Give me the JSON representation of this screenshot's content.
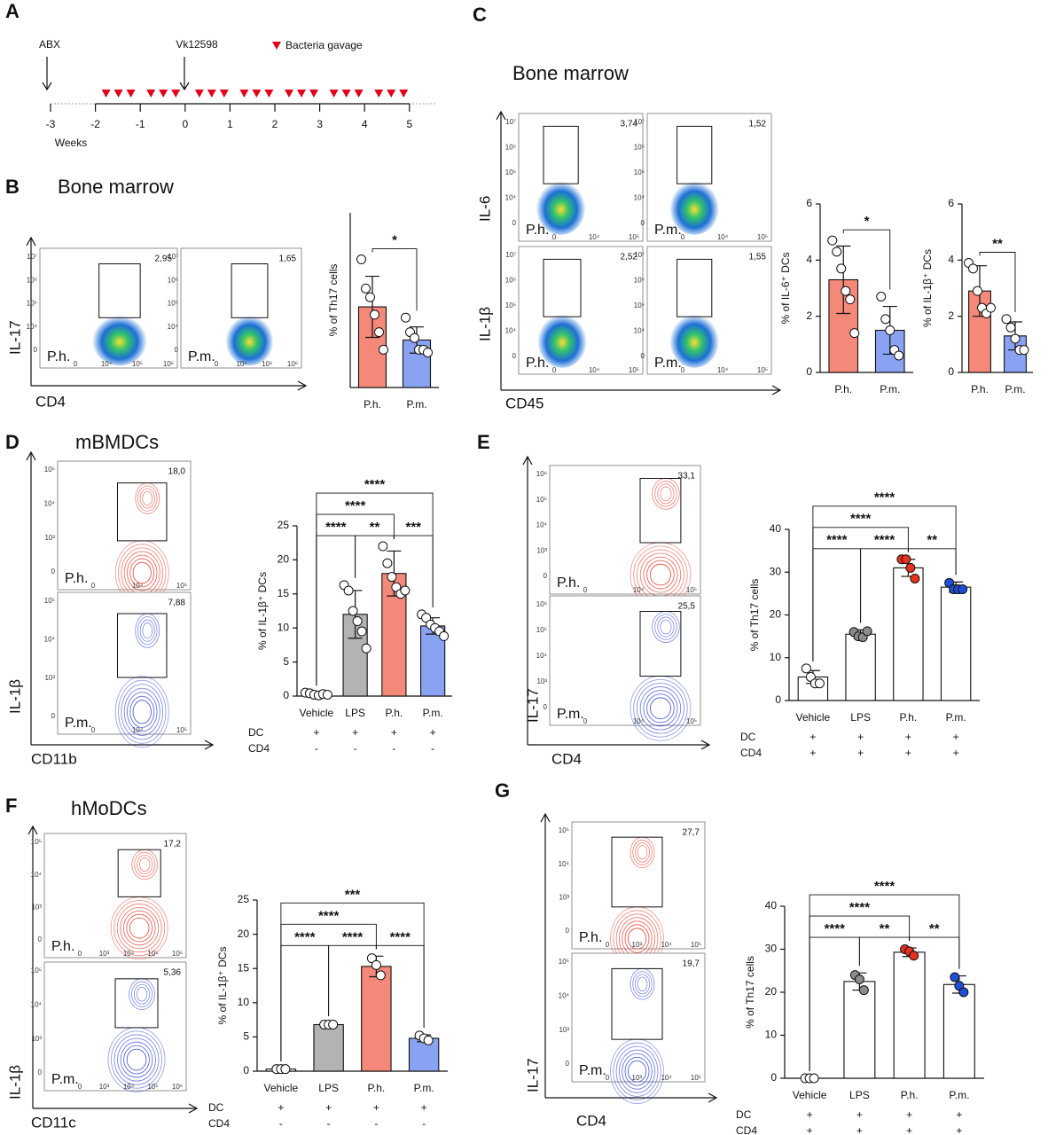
{
  "timeline": {
    "letter": "A",
    "start_label": "ABX",
    "strain_label": "Vk12598",
    "legend": "Bacteria gavage",
    "unit_label": "Weeks",
    "ticks": [
      -3,
      -2,
      -1,
      0,
      1,
      2,
      3,
      4,
      5
    ]
  },
  "flow": [
    {
      "letter": "B",
      "title": "Bone marrow",
      "y_labels": [
        "IL-17"
      ],
      "x_label": "CD4",
      "style": "heat",
      "y_ticks": [
        "0",
        "10⁴",
        "10⁵",
        "10⁶",
        "10⁷"
      ],
      "x_ticks": [
        "0",
        "10⁴",
        "10⁵",
        "10⁶"
      ],
      "plots": [
        {
          "sample": "P.h.",
          "percent": "2,95"
        },
        {
          "sample": "P.m.",
          "percent": "1,65"
        }
      ]
    },
    {
      "letter": "C",
      "title": "Bone marrow",
      "y_labels": [
        "IL-6",
        "IL-1β"
      ],
      "x_label": "CD45",
      "style": "heat",
      "y_ticks": [
        "0",
        "10⁴",
        "10⁵",
        "10⁶",
        "10⁷"
      ],
      "x_ticks": [
        "0",
        "10⁴",
        "10⁵"
      ],
      "plots": [
        {
          "sample": "P.h.",
          "percent": "3,74"
        },
        {
          "sample": "P.m.",
          "percent": "1,52"
        },
        {
          "sample": "P.h.",
          "percent": "2,52"
        },
        {
          "sample": "P.m.",
          "percent": "1,55"
        }
      ]
    },
    {
      "letter": "D",
      "title": "mBMDCs",
      "y_labels": [
        "IL-1β"
      ],
      "x_label": "CD11b",
      "style": "contour",
      "y_ticks": [
        "0",
        "10³",
        "10⁴",
        "10⁵"
      ],
      "x_ticks": [
        "0",
        "10⁴",
        "10⁵"
      ],
      "plots": [
        {
          "sample": "P.h.",
          "percent": "18,0"
        },
        {
          "sample": "P.m.",
          "percent": "7,88"
        }
      ]
    },
    {
      "letter": "E",
      "title": "",
      "y_labels": [
        "IL-17"
      ],
      "x_label": "CD4",
      "style": "contour",
      "y_ticks": [
        "0",
        "10³",
        "10⁴",
        "10⁵",
        "10⁶"
      ],
      "x_ticks": [
        "0",
        "10⁴",
        "10⁵"
      ],
      "plots": [
        {
          "sample": "P.h.",
          "percent": "33,1"
        },
        {
          "sample": "P.m.",
          "percent": "25,5"
        }
      ]
    },
    {
      "letter": "F",
      "title": "hMoDCs",
      "y_labels": [
        "IL-1β"
      ],
      "x_label": "CD11c",
      "style": "contour",
      "y_ticks": [
        "0",
        "10³",
        "10⁴",
        "10⁵"
      ],
      "x_ticks": [
        "0",
        "10³",
        "10⁴",
        "10⁵",
        "10⁶"
      ],
      "plots": [
        {
          "sample": "P.h.",
          "percent": "17,2"
        },
        {
          "sample": "P.m.",
          "percent": "5,36"
        }
      ]
    },
    {
      "letter": "G",
      "title": "",
      "y_labels": [
        "IL-17"
      ],
      "x_label": "CD4",
      "style": "contour",
      "y_ticks": [
        "0",
        "10³",
        "10⁴",
        "10⁵"
      ],
      "x_ticks": [
        "0",
        "10³",
        "10⁴",
        "10⁵"
      ],
      "plots": [
        {
          "sample": "P.h.",
          "percent": "27,7"
        },
        {
          "sample": "P.m.",
          "percent": "19,7"
        }
      ]
    }
  ],
  "chart_data": [
    {
      "type": "bar",
      "ylabel": "% of Th17 cells",
      "categories": [
        "P.h.",
        "P.m."
      ],
      "values": [
        2.77,
        1.63
      ],
      "errors": [
        1.05,
        0.45
      ],
      "points": [
        [
          4.4,
          3.4,
          3.1,
          2.5,
          1.9,
          1.3
        ],
        [
          2.4,
          1.9,
          1.7,
          1.3,
          1.3,
          1.2
        ]
      ],
      "colors": [
        "#f4897a",
        "#8aa2f2"
      ],
      "point_colors": [
        "#ffffff",
        "#ffffff"
      ],
      "ylim": [
        0,
        6
      ],
      "brackets": [
        {
          "pair": [
            0,
            1
          ],
          "label": "*"
        }
      ]
    },
    {
      "type": "bar",
      "ylabel": "% of IL-6⁺ DCs",
      "categories": [
        "P.h.",
        "P.m."
      ],
      "values": [
        3.3,
        1.5
      ],
      "errors": [
        1.2,
        0.85
      ],
      "points": [
        [
          4.7,
          4.3,
          3.7,
          2.9,
          2.6,
          1.4
        ],
        [
          2.7,
          1.9,
          1.5,
          0.8,
          0.6
        ]
      ],
      "colors": [
        "#f4897a",
        "#8aa2f2"
      ],
      "point_colors": [
        "#ffffff",
        "#ffffff"
      ],
      "ylim": [
        0,
        6
      ],
      "yticks": [
        0,
        2,
        4,
        6
      ],
      "brackets": [
        {
          "pair": [
            0,
            1
          ],
          "label": "*"
        }
      ]
    },
    {
      "type": "bar",
      "ylabel": "% of IL-1β⁺ DCs",
      "categories": [
        "P.h.",
        "P.m."
      ],
      "values": [
        2.9,
        1.3
      ],
      "errors": [
        0.9,
        0.5
      ],
      "points": [
        [
          3.9,
          3.7,
          2.9,
          2.3,
          2.1,
          2.3
        ],
        [
          1.9,
          1.6,
          1.2,
          0.8,
          0.8
        ]
      ],
      "colors": [
        "#f4897a",
        "#8aa2f2"
      ],
      "point_colors": [
        "#ffffff",
        "#ffffff"
      ],
      "ylim": [
        0,
        6
      ],
      "yticks": [
        0,
        2,
        4,
        6
      ],
      "brackets": [
        {
          "pair": [
            0,
            1
          ],
          "label": "**"
        }
      ]
    },
    {
      "type": "bar",
      "ylabel": "% of IL-1β⁺ DCs",
      "categories": [
        "Vehicle",
        "LPS",
        "P.h.",
        "P.m."
      ],
      "values": [
        0.3,
        12,
        18,
        10.3
      ],
      "errors": [
        0.2,
        3.5,
        3.3,
        1.2
      ],
      "points": [
        [
          0.5,
          0.4,
          0.2,
          0.1,
          0.3,
          0.2
        ],
        [
          16.3,
          15.5,
          12.5,
          11,
          9.5,
          7
        ],
        [
          22,
          19.5,
          17.5,
          16,
          15,
          15.5
        ],
        [
          12,
          11.5,
          10.5,
          10,
          9.5,
          8.8
        ]
      ],
      "colors": [
        "#ffffff",
        "#b3b3b3",
        "#f4897a",
        "#8aa2f2"
      ],
      "point_colors": [
        "#ffffff",
        "#ffffff",
        "#ffffff",
        "#ffffff"
      ],
      "ylim": [
        0,
        25
      ],
      "yticks": [
        0,
        5,
        10,
        15,
        20,
        25
      ],
      "brackets": [
        {
          "pair": [
            0,
            1
          ],
          "label": "****"
        },
        {
          "pair": [
            1,
            2
          ],
          "label": "**"
        },
        {
          "pair": [
            2,
            3
          ],
          "label": "***"
        },
        {
          "pair": [
            0,
            2
          ],
          "label": "****"
        },
        {
          "pair": [
            0,
            3
          ],
          "label": "****"
        }
      ],
      "rows": [
        {
          "name": "DC",
          "marks": [
            "+",
            "+",
            "+",
            "+"
          ]
        },
        {
          "name": "CD4",
          "marks": [
            "-",
            "-",
            "-",
            "-"
          ]
        }
      ]
    },
    {
      "type": "bar",
      "ylabel": "% of Th17 cells",
      "categories": [
        "Vehicle",
        "LPS",
        "P.h.",
        "P.m."
      ],
      "values": [
        5.5,
        15.5,
        31,
        26.5
      ],
      "errors": [
        1.5,
        1,
        2,
        1.2
      ],
      "points": [
        [
          7.5,
          5.5,
          4,
          4
        ],
        [
          16,
          15,
          14.8,
          16.2
        ],
        [
          33,
          33,
          31,
          28.5
        ],
        [
          27.5,
          26,
          26,
          26
        ]
      ],
      "colors": [
        "#ffffff",
        "#ffffff",
        "#ffffff",
        "#ffffff"
      ],
      "point_colors": [
        "#ffffff",
        "#8c8c8c",
        "#e8321e",
        "#1f4fd6"
      ],
      "ylim": [
        0,
        40
      ],
      "yticks": [
        0,
        10,
        20,
        30,
        40
      ],
      "brackets": [
        {
          "pair": [
            0,
            1
          ],
          "label": "****"
        },
        {
          "pair": [
            1,
            2
          ],
          "label": "****"
        },
        {
          "pair": [
            2,
            3
          ],
          "label": "**"
        },
        {
          "pair": [
            0,
            2
          ],
          "label": "****"
        },
        {
          "pair": [
            0,
            3
          ],
          "label": "****"
        }
      ],
      "rows": [
        {
          "name": "DC",
          "marks": [
            "+",
            "+",
            "+",
            "+"
          ]
        },
        {
          "name": "CD4",
          "marks": [
            "+",
            "+",
            "+",
            "+"
          ]
        }
      ]
    },
    {
      "type": "bar",
      "ylabel": "% of IL-1β⁺ DCs",
      "categories": [
        "Vehicle",
        "LPS",
        "P.h.",
        "P.m."
      ],
      "values": [
        0.3,
        6.8,
        15.3,
        4.8
      ],
      "errors": [
        0.1,
        0.2,
        1.5,
        0.5
      ],
      "points": [
        [
          0.3,
          0.3,
          0.3
        ],
        [
          6.8,
          6.8,
          6.8
        ],
        [
          16.5,
          15.5,
          14
        ],
        [
          5.2,
          4.8,
          4.5
        ]
      ],
      "colors": [
        "#ffffff",
        "#b3b3b3",
        "#f4897a",
        "#8aa2f2"
      ],
      "point_colors": [
        "#ffffff",
        "#ffffff",
        "#ffffff",
        "#ffffff"
      ],
      "ylim": [
        0,
        25
      ],
      "yticks": [
        0,
        5,
        10,
        15,
        20,
        25
      ],
      "brackets": [
        {
          "pair": [
            0,
            1
          ],
          "label": "****"
        },
        {
          "pair": [
            1,
            2
          ],
          "label": "****"
        },
        {
          "pair": [
            2,
            3
          ],
          "label": "****"
        },
        {
          "pair": [
            0,
            2
          ],
          "label": "****"
        },
        {
          "pair": [
            0,
            3
          ],
          "label": "***"
        }
      ],
      "rows": [
        {
          "name": "DC",
          "marks": [
            "+",
            "+",
            "+",
            "+"
          ]
        },
        {
          "name": "CD4",
          "marks": [
            "-",
            "-",
            "-",
            "-"
          ]
        }
      ]
    },
    {
      "type": "bar",
      "ylabel": "% of Th17 cells",
      "categories": [
        "Vehicle",
        "LPS",
        "P.h.",
        "P.m."
      ],
      "values": [
        0,
        22.5,
        29.3,
        21.8
      ],
      "errors": [
        0,
        2,
        1,
        2
      ],
      "points": [
        [
          0,
          0,
          0
        ],
        [
          24,
          23,
          20.5
        ],
        [
          30,
          29.5,
          28.5
        ],
        [
          23.5,
          21.5,
          20
        ]
      ],
      "colors": [
        "#ffffff",
        "#ffffff",
        "#ffffff",
        "#ffffff"
      ],
      "point_colors": [
        "#ffffff",
        "#8c8c8c",
        "#e8321e",
        "#1f4fd6"
      ],
      "ylim": [
        0,
        40
      ],
      "yticks": [
        0,
        10,
        20,
        30,
        40
      ],
      "brackets": [
        {
          "pair": [
            0,
            1
          ],
          "label": "****"
        },
        {
          "pair": [
            1,
            2
          ],
          "label": "**"
        },
        {
          "pair": [
            2,
            3
          ],
          "label": "**"
        },
        {
          "pair": [
            0,
            2
          ],
          "label": "****"
        },
        {
          "pair": [
            0,
            3
          ],
          "label": "****"
        }
      ],
      "rows": [
        {
          "name": "DC",
          "marks": [
            "+",
            "+",
            "+",
            "+"
          ]
        },
        {
          "name": "CD4",
          "marks": [
            "+",
            "+",
            "+",
            "+"
          ]
        }
      ]
    }
  ]
}
